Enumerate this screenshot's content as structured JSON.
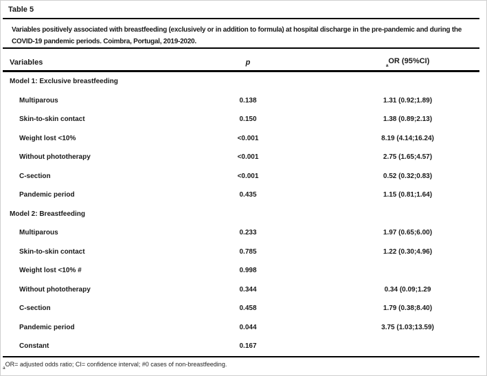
{
  "table": {
    "label": "Table 5",
    "caption": "Variables positively associated with breastfeeding (exclusively or in addition to formula) at hospital discharge in the pre-pandemic and during the COVID-19 pandemic periods. Coimbra, Portugal, 2019-2020.",
    "columns": {
      "variables": "Variables",
      "p": "p",
      "or_sub": "a",
      "or": "OR (95%CI)"
    },
    "sections": [
      {
        "title": "Model 1: Exclusive breastfeeding",
        "rows": [
          {
            "variable": "Multiparous",
            "p": "0.138",
            "or": "1.31 (0.92;1.89)"
          },
          {
            "variable": "Skin-to-skin contact",
            "p": "0.150",
            "or": "1.38 (0.89;2.13)"
          },
          {
            "variable": "Weight lost <10%",
            "p": "<0.001",
            "or": "8.19 (4.14;16.24)"
          },
          {
            "variable": "Without phototherapy",
            "p": "<0.001",
            "or": "2.75 (1.65;4.57)"
          },
          {
            "variable": "C-section",
            "p": "<0.001",
            "or": "0.52 (0.32;0.83)"
          },
          {
            "variable": "Pandemic period",
            "p": "0.435",
            "or": "1.15 (0.81;1.64)"
          }
        ]
      },
      {
        "title": "Model 2: Breastfeeding",
        "rows": [
          {
            "variable": "Multiparous",
            "p": "0.233",
            "or": "1.97 (0.65;6.00)"
          },
          {
            "variable": "Skin-to-skin contact",
            "p": "0.785",
            "or": "1.22 (0.30;4.96)"
          },
          {
            "variable": "Weight lost <10% #",
            "p": "0.998",
            "or": ""
          },
          {
            "variable": "Without phototherapy",
            "p": "0.344",
            "or": "0.34 (0.09;1.29"
          },
          {
            "variable": "C-section",
            "p": "0.458",
            "or": "1.79 (0.38;8.40)"
          },
          {
            "variable": "Pandemic period",
            "p": "0.044",
            "or": "3.75 (1.03;13.59)"
          },
          {
            "variable": "Constant",
            "p": "0.167",
            "or": ""
          }
        ]
      }
    ],
    "footnote_sub": "a",
    "footnote": "OR= adjusted odds ratio; CI= confidence interval; #0 cases of non-breastfeeding."
  }
}
